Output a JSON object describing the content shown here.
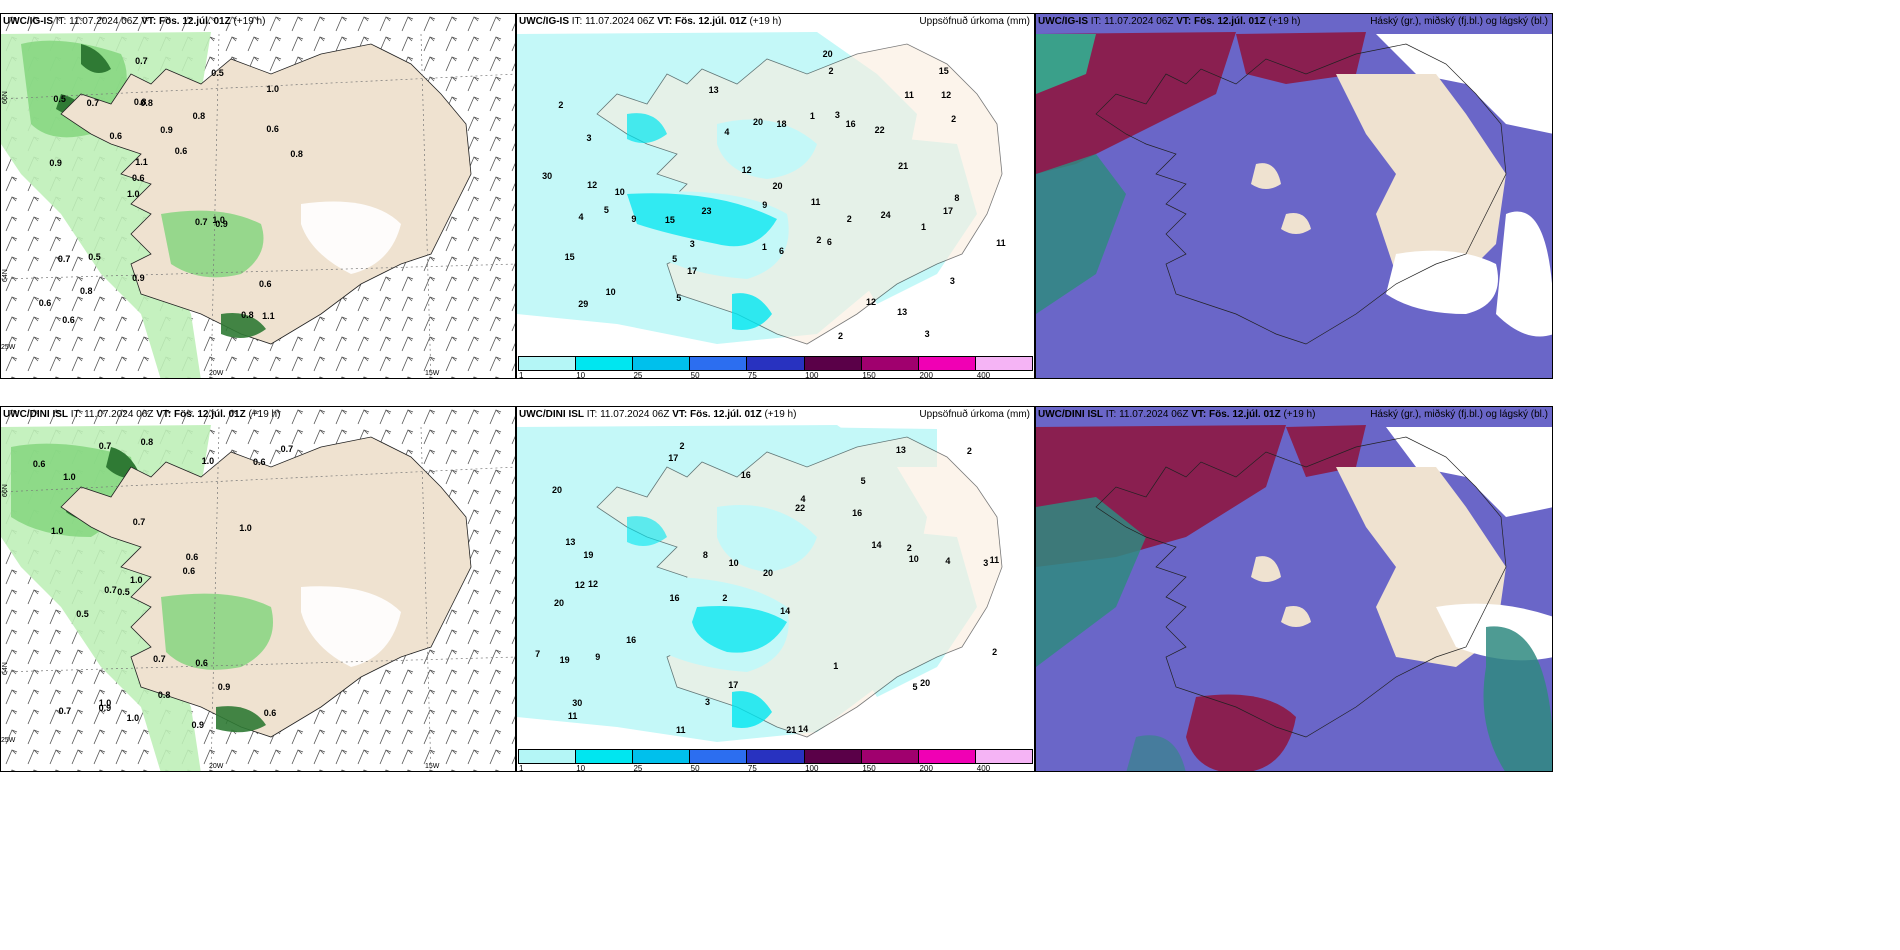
{
  "panels": [
    {
      "model": "UWC/IG-IS",
      "it": "IT: 11.07.2024 06Z",
      "vt": "VT: Fös. 12.júl. 01Z",
      "lead": "(+19 h)",
      "right": ""
    },
    {
      "model": "UWC/IG-IS",
      "it": "IT: 11.07.2024 06Z",
      "vt": "VT: Fös. 12.júl. 01Z",
      "lead": "(+19 h)",
      "right": "Uppsöfnuð úrkoma (mm)"
    },
    {
      "model": "UWC/IG-IS",
      "it": "IT: 11.07.2024 06Z",
      "vt": "VT: Fös. 12.júl. 01Z",
      "lead": "(+19 h)",
      "right": "Háský (gr.), miðský (fj.bl.) og lágský (bl.)"
    },
    {
      "model": "UWC/DINI ISL",
      "it": "IT: 11.07.2024 06Z",
      "vt": "VT: Fös. 12.júl. 01Z",
      "lead": "(+19 h)",
      "right": ""
    },
    {
      "model": "UWC/DINI ISL",
      "it": "IT: 11.07.2024 06Z",
      "vt": "VT: Fös. 12.júl. 01Z",
      "lead": "(+19 h)",
      "right": "Uppsöfnuð úrkoma (mm)"
    },
    {
      "model": "UWC/DINI ISL",
      "it": "IT: 11.07.2024 06Z",
      "vt": "VT: Fös. 12.júl. 01Z",
      "lead": "(+19 h)",
      "right": "Háský (gr.), miðský (fj.bl.) og lágský (bl.)"
    }
  ],
  "axes": {
    "lat66": "66N",
    "lat64": "64N",
    "lon25": "25W",
    "lon20": "20W",
    "lon15": "15W"
  },
  "colorbar": {
    "ticks": [
      "1",
      "10",
      "25",
      "50",
      "75",
      "100",
      "150",
      "200",
      "400"
    ],
    "colors": [
      "#b4f6f6",
      "#00e6f0",
      "#00c0ec",
      "#2c6ef0",
      "#2832c0",
      "#5a0048",
      "#a0006e",
      "#f000b4",
      "#f5b4f5"
    ]
  },
  "wind_labels_top": [
    "1.1",
    "0.9",
    "1.0",
    "1.0",
    "0.8",
    "0.6",
    "0.8",
    "0.9",
    "0.7",
    "0.6",
    "0.6",
    "0.8",
    "0.8",
    "0.6",
    "0.9",
    "0.5",
    "0.7",
    "0.8",
    "0.7",
    "0.6",
    "0.6",
    "0.9",
    "1.1",
    "0.7",
    "0.5",
    "0.5",
    "0.8",
    "0.6",
    "1.0"
  ],
  "wind_labels_bottom": [
    "1.0",
    "0.9",
    "1.0",
    "0.9",
    "0.7",
    "1.0",
    "0.7",
    "0.6",
    "0.8",
    "0.7",
    "0.6",
    "0.8",
    "1.0",
    "0.7",
    "1.0",
    "0.6",
    "1.0",
    "0.9",
    "0.5",
    "0.6",
    "0.6",
    "0.7",
    "0.6",
    "0.7",
    "1.0",
    "0.5"
  ],
  "precip_top": [
    "3",
    "5",
    "2",
    "2",
    "3",
    "3",
    "10",
    "15",
    "22",
    "20",
    "16",
    "13",
    "17",
    "13",
    "11",
    "15",
    "24",
    "20",
    "30",
    "29",
    "15",
    "18",
    "21",
    "11",
    "8",
    "12",
    "9",
    "9",
    "12",
    "12",
    "6",
    "4",
    "5",
    "3",
    "4",
    "1",
    "17",
    "12",
    "11",
    "2",
    "3",
    "6",
    "5",
    "20",
    "23",
    "10",
    "2",
    "2",
    "1",
    "1",
    "2"
  ],
  "precip_bottom": [
    "2",
    "5",
    "3",
    "2",
    "14",
    "12",
    "20",
    "16",
    "20",
    "22",
    "20",
    "11",
    "17",
    "16",
    "21",
    "14",
    "17",
    "13",
    "14",
    "16",
    "19",
    "12",
    "11",
    "4",
    "7",
    "13",
    "10",
    "10",
    "20",
    "19",
    "5",
    "4",
    "9",
    "8",
    "1",
    "2",
    "2",
    "3",
    "2",
    "16",
    "30",
    "11"
  ]
}
